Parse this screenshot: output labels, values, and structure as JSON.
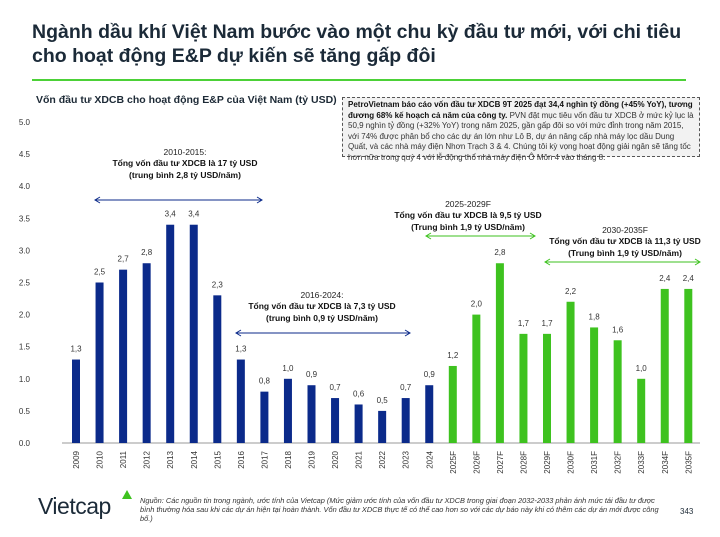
{
  "title": "Ngành dầu khí Việt Nam bước vào một chu kỳ đầu tư mới, với chi tiêu cho hoạt động E&P dự kiến sẽ tăng gấp đôi",
  "callout": {
    "bold": "PetroVietnam báo cáo vốn đầu tư XDCB 9T 2025 đạt 34,4 nghìn tỷ đồng (+45% YoY), tương đương 68% kế hoạch cả năm của công ty.",
    "text": " PVN đặt mục tiêu vốn đầu tư XDCB ở mức kỷ lục là 50,9 nghìn tỷ đồng (+32% YoY) trong năm 2025, gần gấp đôi so với mức đỉnh trong năm 2015, với 74% được phân bổ cho các dự án lớn như Lô B, dự án nâng cấp nhà máy lọc dầu Dung Quất, và các nhà máy điện Nhơn Trạch 3 & 4. Chúng tôi kỳ vọng hoạt động giải ngân sẽ tăng tốc hơn nữa trong quý 4 với lễ động thổ nhà máy điện Ô Môn 4 vào tháng 8."
  },
  "footer": {
    "logo": "Vietcap",
    "source": "Nguồn: Các nguồn tin trong ngành, ước tính của Vietcap (Mức giảm ước tính của vốn đầu tư XDCB trong giai đoạn 2032-2033 phản ánh mức tái đầu tư được bình thường hóa sau khi các dự án hiện tại hoàn thành. Vốn đầu tư XDCB thực tế có thể cao hơn so với các dự báo này khi có thêm các dự án mới được công bố.)",
    "page": "343"
  },
  "chart_data": {
    "type": "bar",
    "title": "Vốn đầu tư XDCB cho hoạt động E&P của Việt Nam (tỷ USD)",
    "categories": [
      "2009",
      "2010",
      "2011",
      "2012",
      "2013",
      "2014",
      "2015",
      "2016",
      "2017",
      "2018",
      "2019",
      "2020",
      "2021",
      "2022",
      "2023",
      "2024",
      "2025F",
      "2026F",
      "2027F",
      "2028F",
      "2029F",
      "2030F",
      "2031F",
      "2032F",
      "2033F",
      "2034F",
      "2035F"
    ],
    "values": [
      1.3,
      2.5,
      2.7,
      2.8,
      3.4,
      3.4,
      2.3,
      1.3,
      0.8,
      1.0,
      0.9,
      0.7,
      0.6,
      0.5,
      0.7,
      0.9,
      1.2,
      2.0,
      2.8,
      1.7,
      1.7,
      2.2,
      1.8,
      1.6,
      1.0,
      2.4,
      2.4
    ],
    "labels": [
      "1,3",
      "2,5",
      "2,7",
      "2,8",
      "3,4",
      "3,4",
      "2,3",
      "1,3",
      "0,8",
      "1,0",
      "0,9",
      "0,7",
      "0,6",
      "0,5",
      "0,7",
      "0,9",
      "1,2",
      "2,0",
      "2,8",
      "1,7",
      "1,7",
      "2,2",
      "1,8",
      "1,6",
      "1,0",
      "2,4",
      "2,4"
    ],
    "ylim": [
      0,
      5
    ],
    "yticks": [
      "0.0",
      "0.5",
      "1.0",
      "1.5",
      "2.0",
      "2.5",
      "3.0",
      "3.5",
      "4.0",
      "4.5",
      "5.0"
    ],
    "colors": {
      "actual": "#0b2a8a",
      "forecast": "#3ec21f"
    },
    "forecast_from": "2025F",
    "annotations": [
      {
        "period": "2010-2015:",
        "line1": "Tổng vốn đầu tư XDCB là 17 tỷ USD",
        "line2": "(trung bình 2,8 tỷ USD/năm)"
      },
      {
        "period": "2016-2024:",
        "line1": "Tổng vốn đầu tư XDCB là 7,3 tỷ USD",
        "line2": "(trung bình 0,9 tỷ USD/năm)"
      },
      {
        "period": "2025-2029F",
        "line1": "Tổng vốn đầu tư XDCB là 9,5 tỷ USD",
        "line2": "(Trung bình 1,9 tỷ USD/năm)"
      },
      {
        "period": "2030-2035F",
        "line1": "Tổng vốn đầu tư XDCB là 11,3 tỷ USD",
        "line2": "(Trung bình 1,9 tỷ USD/năm)"
      }
    ]
  }
}
